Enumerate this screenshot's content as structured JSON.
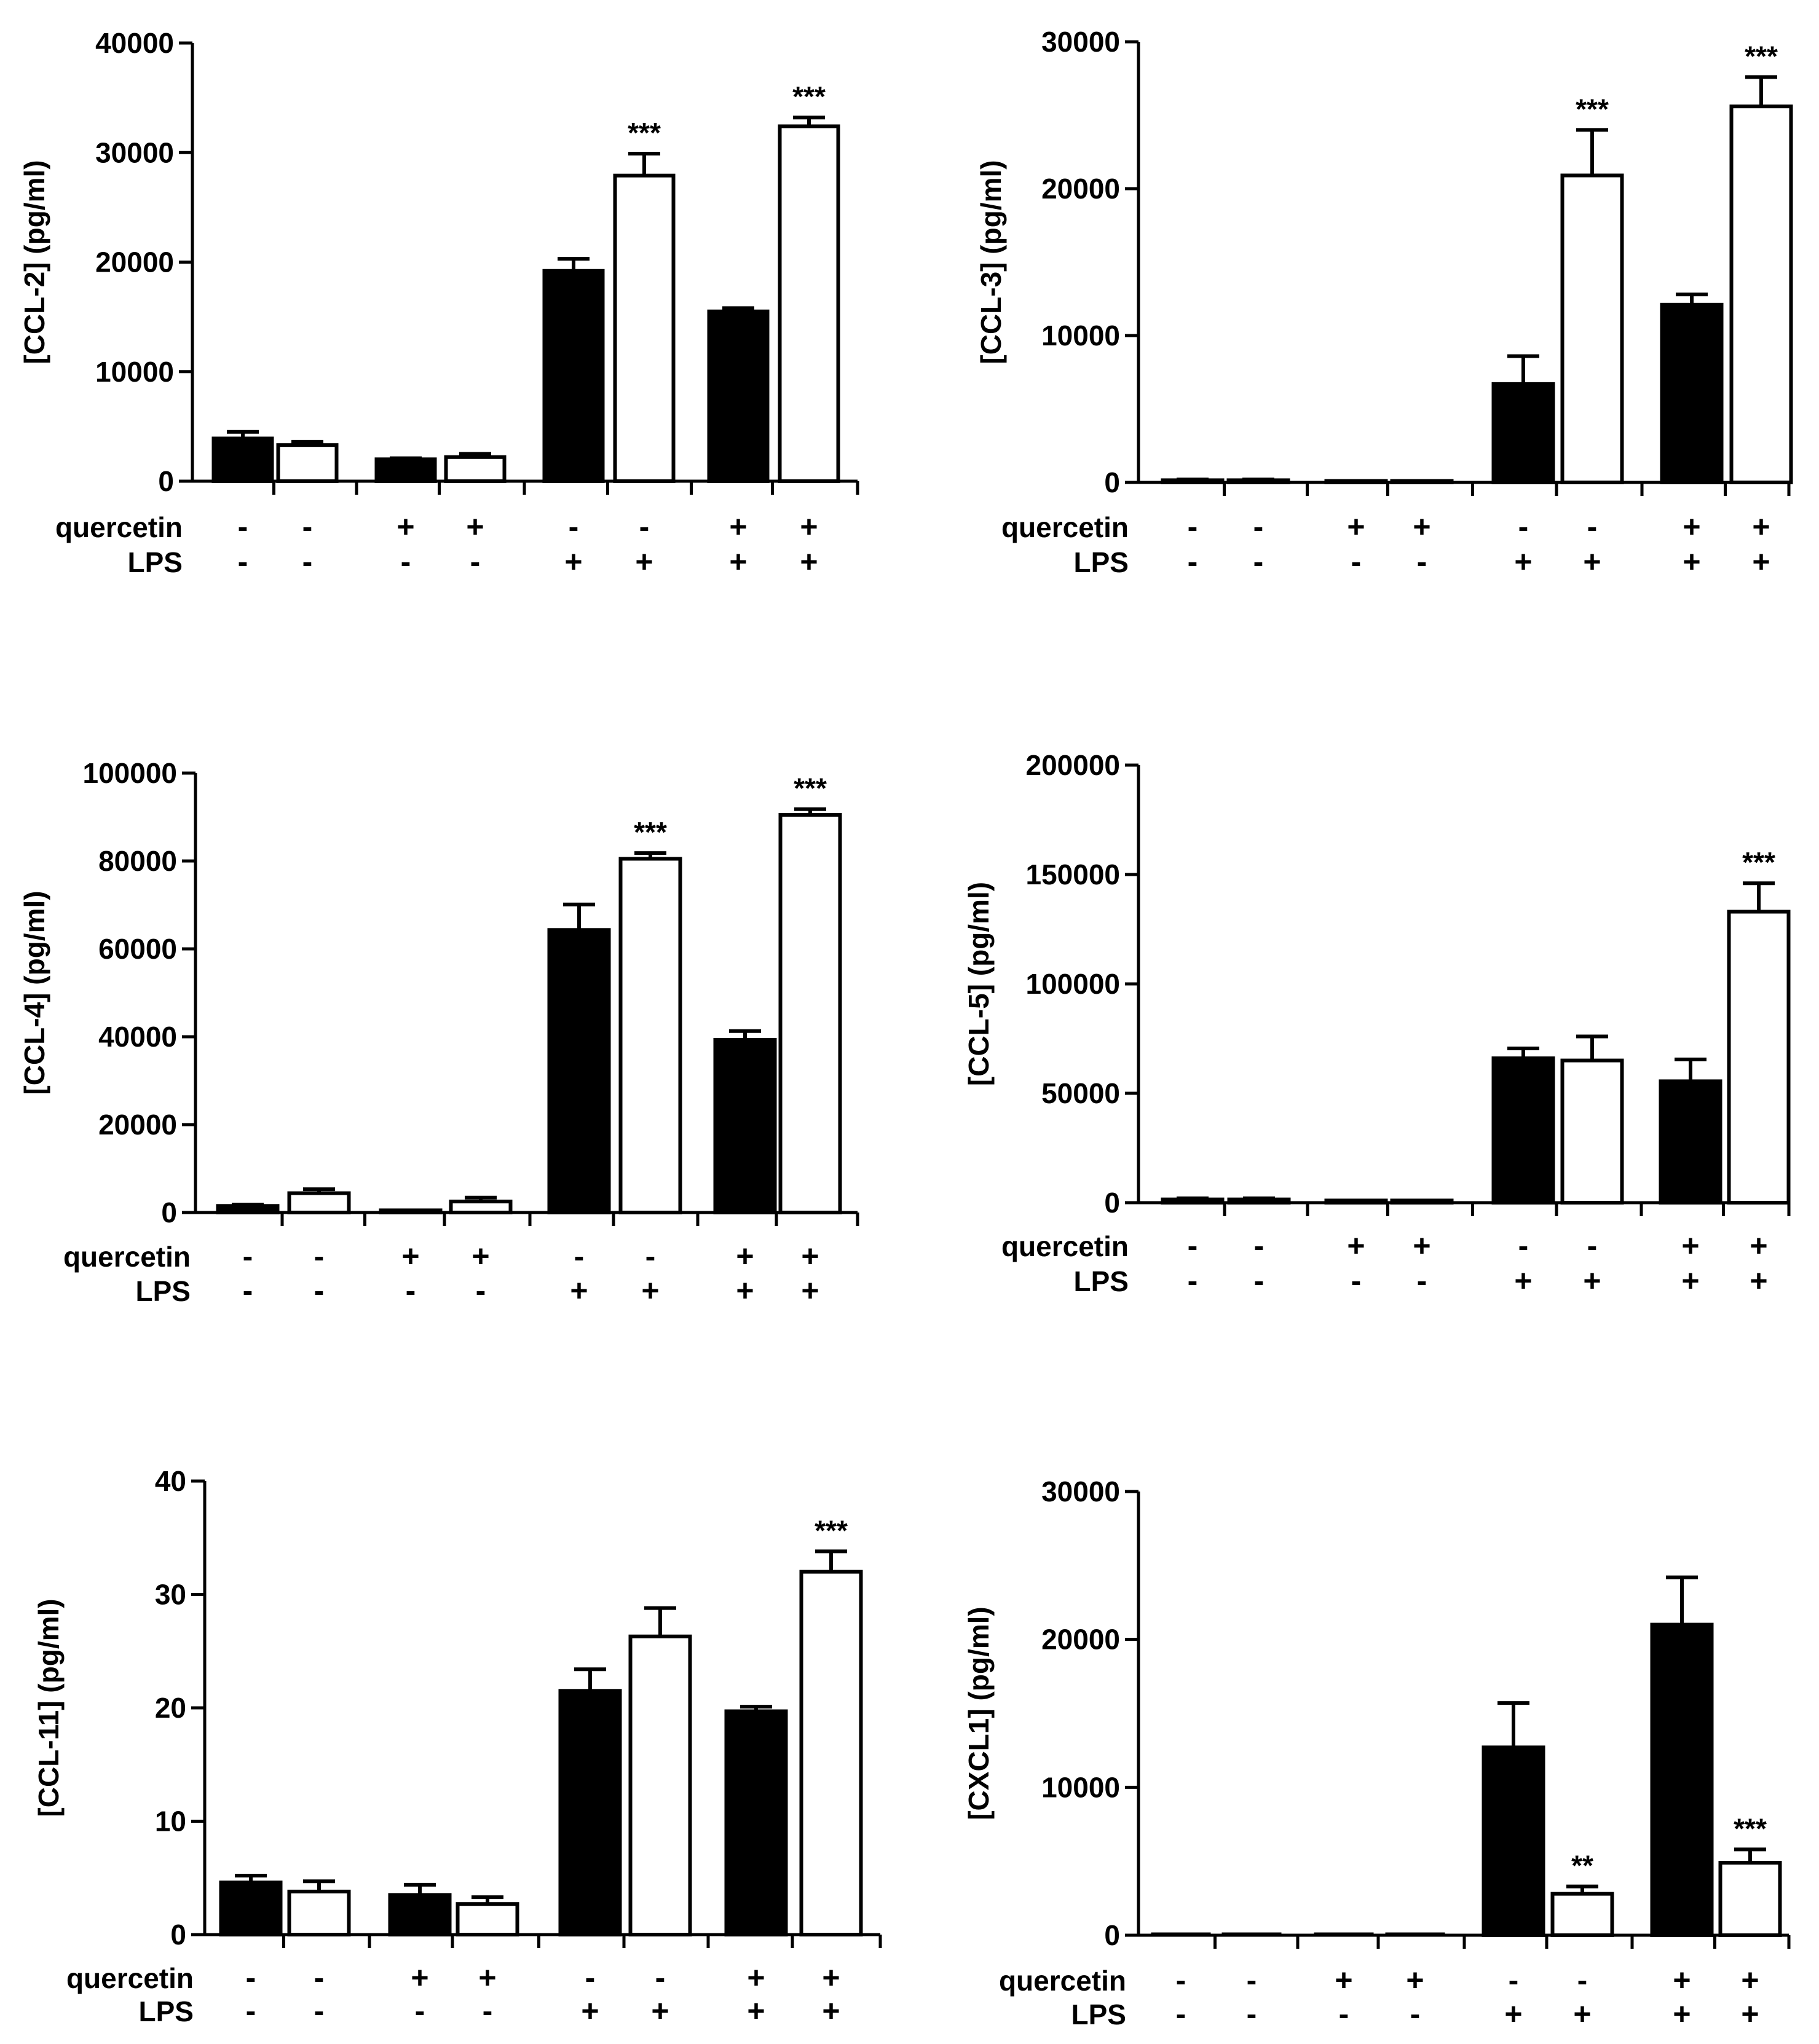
{
  "colors": {
    "filled": "#000000",
    "open": "#ffffff",
    "stroke": "#000000"
  },
  "row_labels": {
    "quercetin": "quercetin",
    "lps": "LPS"
  },
  "chart_data": [
    {
      "type": "bar",
      "id": "ccl2",
      "ylabel": "[CCL-2]  (pg/ml)",
      "ylim": [
        0,
        40000
      ],
      "yticks": [
        0,
        10000,
        20000,
        30000,
        40000
      ],
      "ytick_labels": [
        "0",
        "10000",
        "20000",
        "30000",
        "40000"
      ],
      "series": [
        {
          "name": "filled",
          "values": [
            3900,
            2000,
            19200,
            15500
          ],
          "errors": [
            600,
            100,
            1100,
            300
          ]
        },
        {
          "name": "open",
          "values": [
            3300,
            2200,
            27900,
            32400
          ],
          "errors": [
            300,
            300,
            2000,
            800
          ]
        }
      ],
      "significance": [
        null,
        null,
        null,
        null,
        null,
        "***",
        null,
        "***"
      ],
      "quercetin": [
        "-",
        "-",
        "+",
        "+",
        "-",
        "-",
        "+",
        "+"
      ],
      "lps": [
        "-",
        "-",
        "-",
        "-",
        "+",
        "+",
        "+",
        "+"
      ]
    },
    {
      "type": "bar",
      "id": "ccl3",
      "ylabel": "[CCL-3]  (pg/ml)",
      "ylim": [
        0,
        30000
      ],
      "yticks": [
        0,
        10000,
        20000,
        30000
      ],
      "ytick_labels": [
        "0",
        "10000",
        "20000",
        "30000"
      ],
      "series": [
        {
          "name": "filled",
          "values": [
            150,
            100,
            6700,
            12100
          ],
          "errors": [
            50,
            0,
            1900,
            700
          ]
        },
        {
          "name": "open",
          "values": [
            150,
            100,
            20900,
            25600
          ],
          "errors": [
            50,
            0,
            3100,
            2000
          ]
        }
      ],
      "significance": [
        null,
        null,
        null,
        null,
        null,
        "***",
        null,
        "***"
      ],
      "quercetin": [
        "-",
        "-",
        "+",
        "+",
        "-",
        "-",
        "+",
        "+"
      ],
      "lps": [
        "-",
        "-",
        "-",
        "-",
        "+",
        "+",
        "+",
        "+"
      ]
    },
    {
      "type": "bar",
      "id": "ccl4",
      "ylabel": "[CCL-4]  (pg/ml)",
      "ylim": [
        0,
        100000
      ],
      "yticks": [
        0,
        20000,
        40000,
        60000,
        80000,
        100000
      ],
      "ytick_labels": [
        "0",
        "20000",
        "40000",
        "60000",
        "80000",
        "100000"
      ],
      "series": [
        {
          "name": "filled",
          "values": [
            1500,
            500,
            64300,
            39300
          ],
          "errors": [
            300,
            0,
            5800,
            2000
          ]
        },
        {
          "name": "open",
          "values": [
            4400,
            2500,
            80500,
            90500
          ],
          "errors": [
            900,
            900,
            1300,
            1300
          ]
        }
      ],
      "significance": [
        null,
        null,
        null,
        null,
        null,
        "***",
        null,
        "***"
      ],
      "quercetin": [
        "-",
        "-",
        "+",
        "+",
        "-",
        "-",
        "+",
        "+"
      ],
      "lps": [
        "-",
        "-",
        "-",
        "-",
        "+",
        "+",
        "+",
        "+"
      ]
    },
    {
      "type": "bar",
      "id": "ccl5",
      "ylabel": "[CCL-5]  (pg/ml)",
      "ylim": [
        0,
        200000
      ],
      "yticks": [
        0,
        50000,
        100000,
        150000,
        200000
      ],
      "ytick_labels": [
        "0",
        "50000",
        "100000",
        "150000",
        "200000"
      ],
      "series": [
        {
          "name": "filled",
          "values": [
            1500,
            1000,
            66000,
            55500
          ],
          "errors": [
            500,
            0,
            4500,
            10000
          ]
        },
        {
          "name": "open",
          "values": [
            1500,
            1000,
            65000,
            133000
          ],
          "errors": [
            500,
            0,
            11000,
            13000
          ]
        }
      ],
      "significance": [
        null,
        null,
        null,
        null,
        null,
        null,
        null,
        "***"
      ],
      "quercetin": [
        "-",
        "-",
        "+",
        "+",
        "-",
        "-",
        "+",
        "+"
      ],
      "lps": [
        "-",
        "-",
        "-",
        "-",
        "+",
        "+",
        "+",
        "+"
      ]
    },
    {
      "type": "bar",
      "id": "ccl11",
      "ylabel": "[CCL-11]  (pg/ml)",
      "ylim": [
        0,
        40
      ],
      "yticks": [
        0,
        10,
        20,
        30,
        40
      ],
      "ytick_labels": [
        "0",
        "10",
        "20",
        "30",
        "40"
      ],
      "series": [
        {
          "name": "filled",
          "values": [
            4.6,
            3.5,
            21.5,
            19.7
          ],
          "errors": [
            0.6,
            0.9,
            1.9,
            0.4
          ]
        },
        {
          "name": "open",
          "values": [
            3.8,
            2.7,
            26.3,
            32.0
          ],
          "errors": [
            0.9,
            0.6,
            2.5,
            1.8
          ]
        }
      ],
      "significance": [
        null,
        null,
        null,
        null,
        null,
        null,
        null,
        "***"
      ],
      "quercetin": [
        "-",
        "-",
        "+",
        "+",
        "-",
        "-",
        "+",
        "+"
      ],
      "lps": [
        "-",
        "-",
        "-",
        "-",
        "+",
        "+",
        "+",
        "+"
      ]
    },
    {
      "type": "bar",
      "id": "cxcl1",
      "ylabel": "[CXCL1]  (pg/ml)",
      "ylim": [
        0,
        30000
      ],
      "yticks": [
        0,
        10000,
        20000,
        30000
      ],
      "ytick_labels": [
        "0",
        "10000",
        "20000",
        "30000"
      ],
      "series": [
        {
          "name": "filled",
          "values": [
            0,
            0,
            12700,
            21000
          ],
          "errors": [
            0,
            0,
            3000,
            3200
          ]
        },
        {
          "name": "open",
          "values": [
            0,
            0,
            2800,
            4900
          ],
          "errors": [
            0,
            0,
            500,
            900
          ]
        }
      ],
      "significance": [
        null,
        null,
        null,
        null,
        null,
        "**",
        null,
        "***"
      ],
      "quercetin": [
        "-",
        "-",
        "+",
        "+",
        "-",
        "-",
        "+",
        "+"
      ],
      "lps": [
        "-",
        "-",
        "-",
        "-",
        "+",
        "+",
        "+",
        "+"
      ]
    }
  ]
}
